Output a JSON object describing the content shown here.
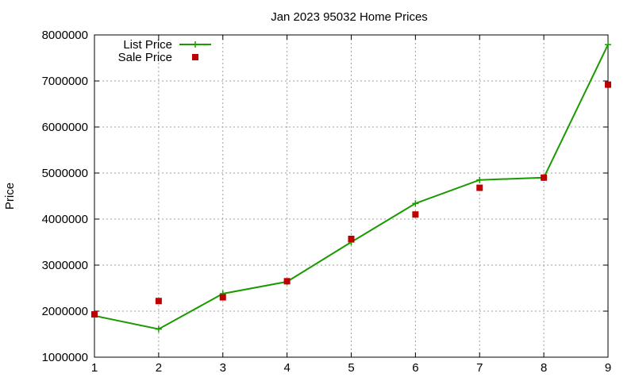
{
  "chart_data": {
    "type": "line",
    "title": "Jan 2023 95032 Home Prices",
    "xlabel": "",
    "ylabel": "Price",
    "xlim": [
      1,
      9
    ],
    "ylim": [
      1000000,
      8000000
    ],
    "x_ticks": [
      "1",
      "2",
      "3",
      "4",
      "5",
      "6",
      "7",
      "8",
      "9"
    ],
    "y_ticks": [
      "1000000",
      "2000000",
      "3000000",
      "4000000",
      "5000000",
      "6000000",
      "7000000",
      "8000000"
    ],
    "grid": true,
    "legend_position": "top-left",
    "x": [
      1,
      2,
      3,
      4,
      5,
      6,
      7,
      8,
      9
    ],
    "series": [
      {
        "name": "List Price",
        "style": "line+cross",
        "color": "#1a9a00",
        "values": [
          1900000,
          1610000,
          2380000,
          2640000,
          3500000,
          4340000,
          4850000,
          4900000,
          7790000
        ]
      },
      {
        "name": "Sale Price",
        "style": "square-points",
        "color": "#c00000",
        "values": [
          1930000,
          2220000,
          2300000,
          2650000,
          3570000,
          4100000,
          4680000,
          4900000,
          6920000
        ]
      }
    ]
  }
}
